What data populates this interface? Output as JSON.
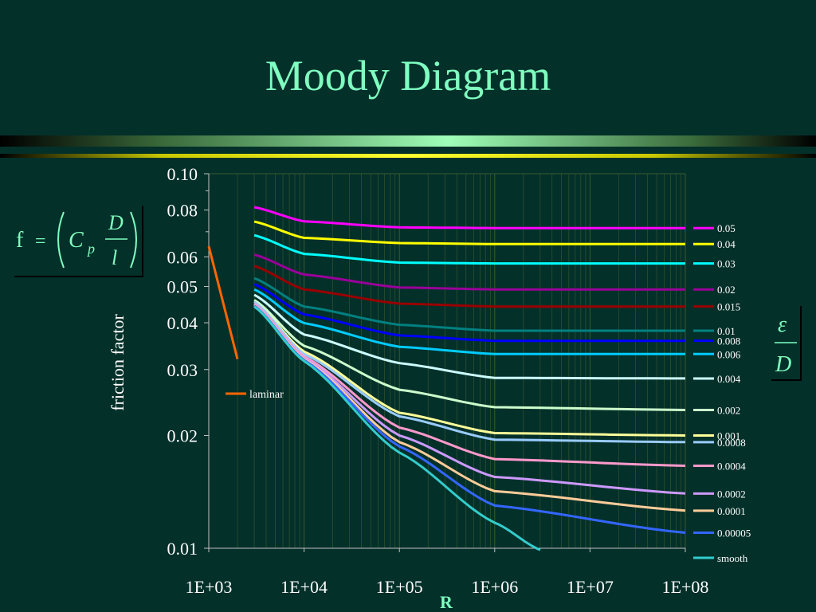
{
  "slide": {
    "title": "Moody Diagram"
  },
  "formula_left": {
    "lhs": "f",
    "eq": "=",
    "coef": "C",
    "sub": "p",
    "num": "D",
    "den": "l"
  },
  "formula_right": {
    "num": "ε",
    "den": "D"
  },
  "colors": {
    "title": "#7fffc0",
    "background": "#04302a",
    "grid": "#3a5a30"
  },
  "chart_data": {
    "type": "line",
    "title": "",
    "xlabel": "R",
    "ylabel": "friction factor",
    "x_scale": "log",
    "y_scale": "log",
    "xlim": [
      1000,
      100000000
    ],
    "ylim": [
      0.01,
      0.1
    ],
    "x_tick_labels": [
      "1E+03",
      "1E+04",
      "1E+05",
      "1E+06",
      "1E+07",
      "1E+08"
    ],
    "y_tick_labels": [
      "0.10",
      "0.08",
      "0.06",
      "0.05",
      "0.04",
      "0.03",
      "0.02",
      "0.01"
    ],
    "y_ticks": [
      0.1,
      0.08,
      0.06,
      0.05,
      0.04,
      0.03,
      0.02,
      0.01
    ],
    "laminar": {
      "name": "laminar",
      "color": "#ff6600",
      "x": [
        1000,
        2000
      ],
      "y": [
        0.064,
        0.032
      ]
    },
    "series": [
      {
        "name": "0.05",
        "color": "#ff00ff",
        "x": [
          3000,
          10000,
          100000,
          1000000,
          100000000
        ],
        "y": [
          0.0814,
          0.0746,
          0.0719,
          0.0716,
          0.0716
        ]
      },
      {
        "name": "0.04",
        "color": "#ffff00",
        "x": [
          3000,
          10000,
          100000,
          1000000,
          100000000
        ],
        "y": [
          0.0745,
          0.0674,
          0.0653,
          0.0649,
          0.0649
        ]
      },
      {
        "name": "0.03",
        "color": "#00ffff",
        "x": [
          3000,
          10000,
          100000,
          1000000,
          100000000
        ],
        "y": [
          0.0685,
          0.0611,
          0.0579,
          0.0576,
          0.0576
        ]
      },
      {
        "name": "0.02",
        "color": "#990099",
        "x": [
          3000,
          10000,
          100000,
          1000000,
          100000000
        ],
        "y": [
          0.0608,
          0.0538,
          0.0497,
          0.0491,
          0.0491
        ]
      },
      {
        "name": "0.015",
        "color": "#990000",
        "x": [
          3000,
          10000,
          100000,
          1000000,
          100000000
        ],
        "y": [
          0.0567,
          0.0491,
          0.045,
          0.0442,
          0.0442
        ]
      },
      {
        "name": "0.01",
        "color": "#008080",
        "x": [
          3000,
          10000,
          100000,
          1000000,
          100000000
        ],
        "y": [
          0.0526,
          0.0442,
          0.0395,
          0.0381,
          0.0381
        ]
      },
      {
        "name": "0.008",
        "color": "#0000ff",
        "x": [
          3000,
          10000,
          100000,
          1000000,
          100000000
        ],
        "y": [
          0.0507,
          0.0421,
          0.037,
          0.0358,
          0.0358
        ]
      },
      {
        "name": "0.006",
        "color": "#00ccff",
        "x": [
          3000,
          10000,
          100000,
          1000000,
          100000000
        ],
        "y": [
          0.0491,
          0.0399,
          0.0345,
          0.033,
          0.033
        ]
      },
      {
        "name": "0.004",
        "color": "#ccffff",
        "x": [
          3000,
          10000,
          100000,
          1000000,
          100000000
        ],
        "y": [
          0.0475,
          0.0372,
          0.0312,
          0.0285,
          0.0284
        ]
      },
      {
        "name": "0.002",
        "color": "#ccffcc",
        "x": [
          3000,
          10000,
          100000,
          1000000,
          100000000
        ],
        "y": [
          0.046,
          0.0347,
          0.0265,
          0.0238,
          0.0234
        ]
      },
      {
        "name": "0.001",
        "color": "#ffff99",
        "x": [
          3000,
          10000,
          100000,
          1000000,
          100000000
        ],
        "y": [
          0.0455,
          0.0335,
          0.023,
          0.0203,
          0.02
        ]
      },
      {
        "name": "0.0008",
        "color": "#99ccff",
        "x": [
          3000,
          10000,
          100000,
          1000000,
          100000000
        ],
        "y": [
          0.0455,
          0.033,
          0.0225,
          0.0195,
          0.0192
        ]
      },
      {
        "name": "0.0004",
        "color": "#ff99cc",
        "x": [
          3000,
          10000,
          100000,
          1000000,
          100000000
        ],
        "y": [
          0.045,
          0.0325,
          0.021,
          0.0173,
          0.0166
        ]
      },
      {
        "name": "0.0002",
        "color": "#cc99ff",
        "x": [
          3000,
          10000,
          100000,
          1000000,
          100000000
        ],
        "y": [
          0.0448,
          0.0322,
          0.02,
          0.0155,
          0.014
        ]
      },
      {
        "name": "0.0001",
        "color": "#ffcc99",
        "x": [
          3000,
          10000,
          100000,
          1000000,
          100000000
        ],
        "y": [
          0.0446,
          0.032,
          0.0192,
          0.0142,
          0.0126
        ]
      },
      {
        "name": "0.00005",
        "color": "#3366ff",
        "x": [
          3000,
          10000,
          100000,
          1000000,
          100000000
        ],
        "y": [
          0.0444,
          0.0318,
          0.0187,
          0.013,
          0.011
        ]
      },
      {
        "name": "smooth",
        "color": "#33cccc",
        "x": [
          3000,
          10000,
          100000,
          1000000,
          3000000
        ],
        "y": [
          0.0442,
          0.0316,
          0.018,
          0.0117,
          0.0099
        ]
      }
    ]
  }
}
